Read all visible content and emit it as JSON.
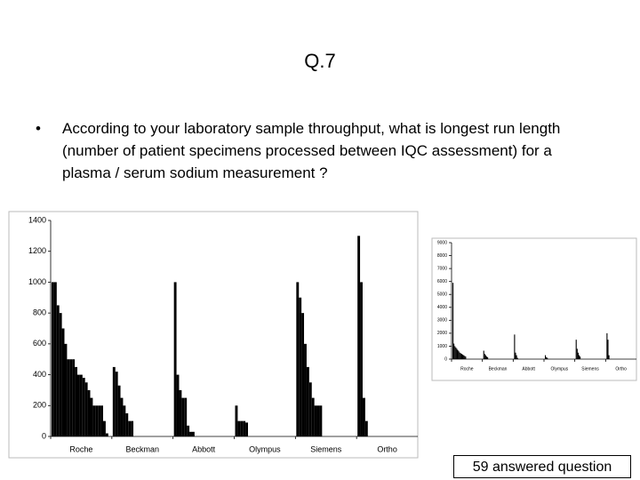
{
  "slide": {
    "title": "Q.7",
    "bullet": "According to your laboratory sample throughput, what is longest run length (number of patient specimens processed between IQC assessment) for a plasma / serum sodium measurement ?",
    "footer": "59 answered question"
  },
  "chart_data": [
    {
      "type": "bar",
      "ylim": [
        0,
        1400
      ],
      "yticks": [
        0,
        200,
        400,
        600,
        800,
        1000,
        1200,
        1400
      ],
      "color": "#000000",
      "groups": [
        {
          "name": "Roche",
          "values": [
            1000,
            1000,
            850,
            800,
            700,
            600,
            500,
            500,
            500,
            450,
            400,
            400,
            380,
            350,
            300,
            250,
            200,
            200,
            200,
            200,
            100,
            20
          ]
        },
        {
          "name": "Beckman",
          "values": [
            450,
            420,
            330,
            250,
            200,
            150,
            100,
            100
          ]
        },
        {
          "name": "Abbott",
          "values": [
            1000,
            400,
            300,
            250,
            250,
            70,
            30,
            30
          ]
        },
        {
          "name": "Olympus",
          "values": [
            200,
            100,
            100,
            100,
            90
          ]
        },
        {
          "name": "Siemens",
          "values": [
            1000,
            900,
            800,
            600,
            450,
            350,
            250,
            200,
            200,
            200
          ]
        },
        {
          "name": "Ortho",
          "values": [
            1300,
            1000,
            250,
            100
          ]
        }
      ]
    },
    {
      "type": "bar",
      "ylim": [
        0,
        9000
      ],
      "yticks": [
        0,
        1000,
        2000,
        3000,
        4000,
        5000,
        6000,
        7000,
        8000,
        9000
      ],
      "color": "#000000",
      "groups": [
        {
          "name": "Roche",
          "values": [
            5900,
            1200,
            1000,
            900,
            800,
            700,
            600,
            500,
            450,
            400,
            350,
            300,
            250,
            200
          ]
        },
        {
          "name": "Beckman",
          "values": [
            650,
            400,
            300,
            200,
            150
          ]
        },
        {
          "name": "Abbott",
          "values": [
            1900,
            500,
            300,
            100
          ]
        },
        {
          "name": "Olympus",
          "values": [
            300,
            150,
            100
          ]
        },
        {
          "name": "Siemens",
          "values": [
            1500,
            800,
            500,
            300,
            200
          ]
        },
        {
          "name": "Ortho",
          "values": [
            2000,
            1500,
            300
          ]
        }
      ]
    }
  ]
}
